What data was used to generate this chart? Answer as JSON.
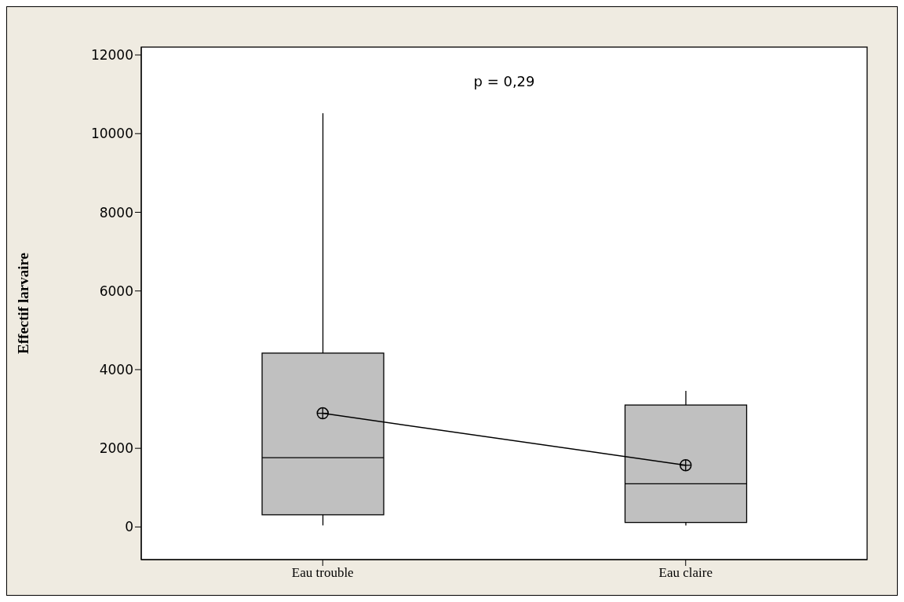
{
  "chart_data": {
    "type": "box",
    "ylabel": "Effectif larvaire",
    "categories": [
      "Eau trouble",
      "Eau claire"
    ],
    "boxes": [
      {
        "low": 40,
        "q1": 310,
        "median": 1760,
        "q3": 4420,
        "high": 10520
      },
      {
        "low": 40,
        "q1": 115,
        "median": 1100,
        "q3": 3100,
        "high": 3460
      }
    ],
    "color": "#c0c0c0",
    "series": [
      {
        "type": "line",
        "color": "#000000",
        "values": [
          2890,
          1570
        ],
        "marker": "circle",
        "line_style": "solid"
      }
    ],
    "ylim": [
      -830,
      12200
    ],
    "yticks": [
      0,
      2000,
      4000,
      6000,
      8000,
      10000,
      12000
    ],
    "annotations": [
      "p = 0,29"
    ]
  }
}
